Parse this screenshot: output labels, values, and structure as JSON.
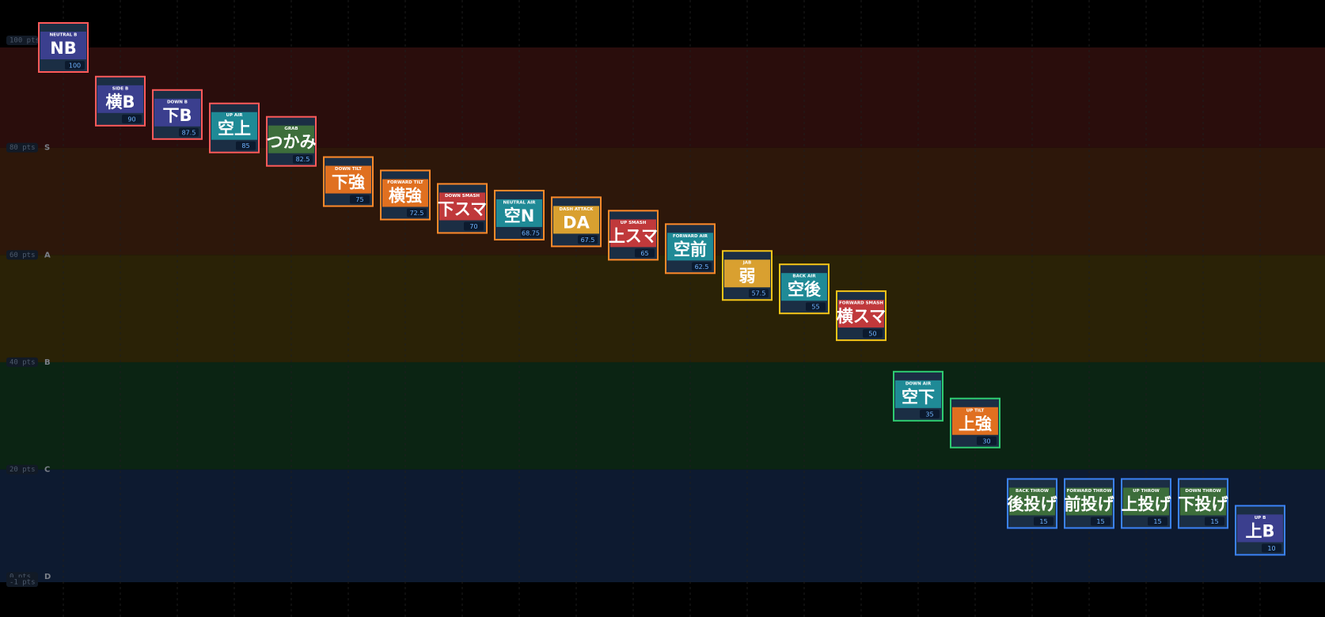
{
  "chart_data": {
    "type": "tierlist",
    "ylim": [
      -1,
      100
    ],
    "yticks": [
      {
        "value": 100,
        "label": "100 pts"
      },
      {
        "value": 80,
        "label": "80 pts"
      },
      {
        "value": 60,
        "label": "60 pts"
      },
      {
        "value": 40,
        "label": "40 pts"
      },
      {
        "value": 20,
        "label": "20 pts"
      },
      {
        "value": 0,
        "label": "0 pts"
      },
      {
        "value": -1,
        "label": "-1 pts"
      }
    ],
    "tiers": [
      {
        "name": "S",
        "min": 80,
        "color": "#ff5a5a",
        "band": "#2a0d0c"
      },
      {
        "name": "A",
        "min": 60,
        "color": "#ff8a2a",
        "band": "#2d170a"
      },
      {
        "name": "B",
        "min": 40,
        "color": "#f5c518",
        "band": "#2a2206"
      },
      {
        "name": "C",
        "min": 20,
        "color": "#2ecc71",
        "band": "#0b2413"
      },
      {
        "name": "D",
        "min": 0,
        "color": "#3b82f6",
        "band": "#0d1a30"
      }
    ],
    "moves": [
      {
        "name": "NEUTRAL B",
        "label": "NB",
        "value": 100,
        "color": "#3b3f8e"
      },
      {
        "name": "SIDE B",
        "label": "横B",
        "value": 90,
        "color": "#3b3f8e"
      },
      {
        "name": "DOWN B",
        "label": "下B",
        "value": 87.5,
        "color": "#3b3f8e"
      },
      {
        "name": "UP AIR",
        "label": "空上",
        "value": 85,
        "color": "#1f8a96"
      },
      {
        "name": "GRAB",
        "label": "つかみ",
        "value": 82.5,
        "color": "#3d6e3b"
      },
      {
        "name": "DOWN TILT",
        "label": "下強",
        "value": 75,
        "color": "#e07020"
      },
      {
        "name": "FORWARD TILT",
        "label": "横強",
        "value": 72.5,
        "color": "#e07020"
      },
      {
        "name": "DOWN SMASH",
        "label": "下スマ",
        "value": 70,
        "color": "#c0393b"
      },
      {
        "name": "NEUTRAL AIR",
        "label": "空N",
        "value": 68.75,
        "color": "#1f8a96"
      },
      {
        "name": "DASH ATTACK",
        "label": "DA",
        "value": 67.5,
        "color": "#d9a030"
      },
      {
        "name": "UP SMASH",
        "label": "上スマ",
        "value": 65,
        "color": "#c0393b"
      },
      {
        "name": "FORWARD AIR",
        "label": "空前",
        "value": 62.5,
        "color": "#1f8a96"
      },
      {
        "name": "JAB",
        "label": "弱",
        "value": 57.5,
        "color": "#d9a030"
      },
      {
        "name": "BACK AIR",
        "label": "空後",
        "value": 55,
        "color": "#1f8a96"
      },
      {
        "name": "FORWARD SMASH",
        "label": "横スマ",
        "value": 50,
        "color": "#c0393b"
      },
      {
        "name": "DOWN AIR",
        "label": "空下",
        "value": 35,
        "color": "#1f8a96"
      },
      {
        "name": "UP TILT",
        "label": "上強",
        "value": 30,
        "color": "#e07020"
      },
      {
        "name": "BACK THROW",
        "label": "後投げ",
        "value": 15,
        "color": "#3d6e3b"
      },
      {
        "name": "FORWARD THROW",
        "label": "前投げ",
        "value": 15,
        "color": "#3d6e3b"
      },
      {
        "name": "UP THROW",
        "label": "上投げ",
        "value": 15,
        "color": "#3d6e3b"
      },
      {
        "name": "DOWN THROW",
        "label": "下投げ",
        "value": 15,
        "color": "#3d6e3b"
      },
      {
        "name": "UP B",
        "label": "上B",
        "value": 10,
        "color": "#3b3f8e"
      }
    ]
  }
}
